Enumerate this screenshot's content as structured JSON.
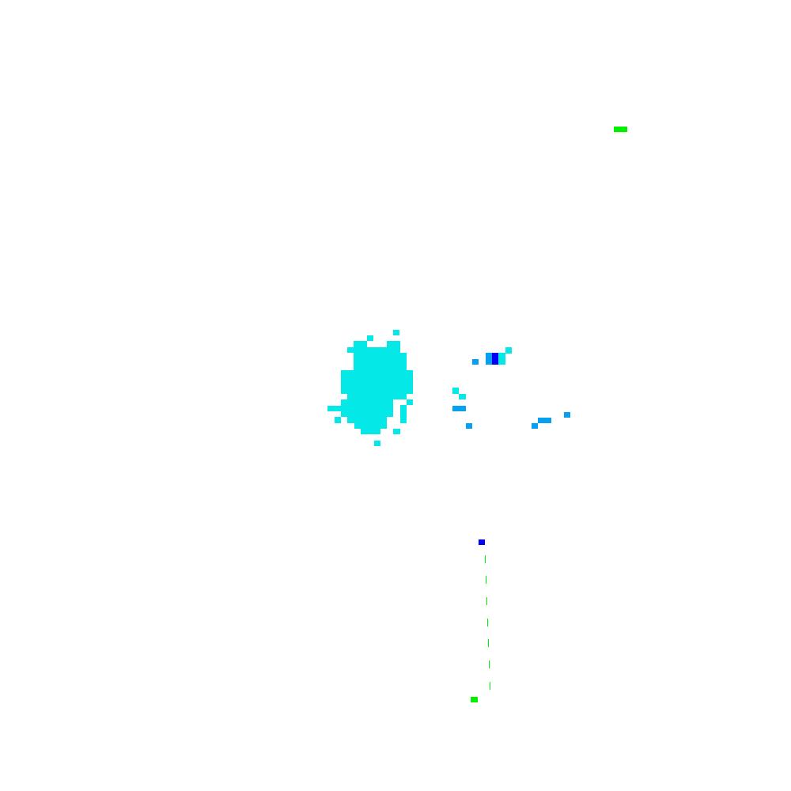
{
  "colors": {
    "background": "#ffffff",
    "cyan": "#05e8e8",
    "light_blue": "#05a0f0",
    "blue": "#0000f5",
    "green": "#00f000"
  }
}
